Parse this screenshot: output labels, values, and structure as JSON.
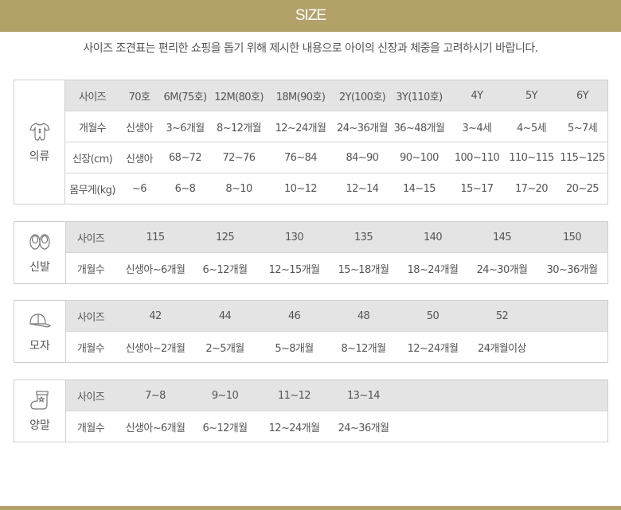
{
  "header": {
    "title": "SIZE"
  },
  "notice": "사이즈 조견표는 편리한 쇼핑을 돕기 위해 제시한 내용으로 아이의 신장과 체중을 고려하시기 바랍니다.",
  "tables": [
    {
      "category": "의류",
      "icon": "baby-romper-icon",
      "rows": [
        [
          "사이즈",
          "70호",
          "6M(75호)",
          "12M(80호)",
          "18M(90호)",
          "2Y(100호)",
          "3Y(110호)",
          "4Y",
          "5Y",
          "6Y"
        ],
        [
          "개월수",
          "신생아",
          "3~6개월",
          "8~12개월",
          "12~24개월",
          "24~36개월",
          "36~48개월",
          "3~4세",
          "4~5세",
          "5~7세"
        ],
        [
          "신장(cm)",
          "신생아",
          "68~72",
          "72~76",
          "76~84",
          "84~90",
          "90~100",
          "100~110",
          "110~115",
          "115~125"
        ],
        [
          "몸무게(kg)",
          "~6",
          "6~8",
          "8~10",
          "10~12",
          "12~14",
          "14~15",
          "15~17",
          "17~20",
          "20~25"
        ]
      ]
    },
    {
      "category": "신발",
      "icon": "baby-shoes-icon",
      "rows": [
        [
          "사이즈",
          "115",
          "125",
          "130",
          "135",
          "140",
          "145",
          "150"
        ],
        [
          "개월수",
          "신생아~6개월",
          "6~12개월",
          "12~15개월",
          "15~18개월",
          "18~24개월",
          "24~30개월",
          "30~36개월"
        ]
      ]
    },
    {
      "category": "모자",
      "icon": "cap-icon",
      "rows": [
        [
          "사이즈",
          "42",
          "44",
          "46",
          "48",
          "50",
          "52",
          ""
        ],
        [
          "개월수",
          "신생아~2개월",
          "2~5개월",
          "5~8개월",
          "8~12개월",
          "12~24개월",
          "24개월이상",
          ""
        ]
      ]
    },
    {
      "category": "양말",
      "icon": "sock-icon",
      "rows": [
        [
          "사이즈",
          "7~8",
          "9~10",
          "11~12",
          "13~14",
          "",
          "",
          ""
        ],
        [
          "개월수",
          "신생아~6개월",
          "6~12개월",
          "12~24개월",
          "24~36개월",
          "",
          "",
          ""
        ]
      ]
    }
  ],
  "colors": {
    "accent": "#b3a16a",
    "header_row": "#e4e4e4",
    "border": "#cfcfcf",
    "text": "#555555"
  }
}
